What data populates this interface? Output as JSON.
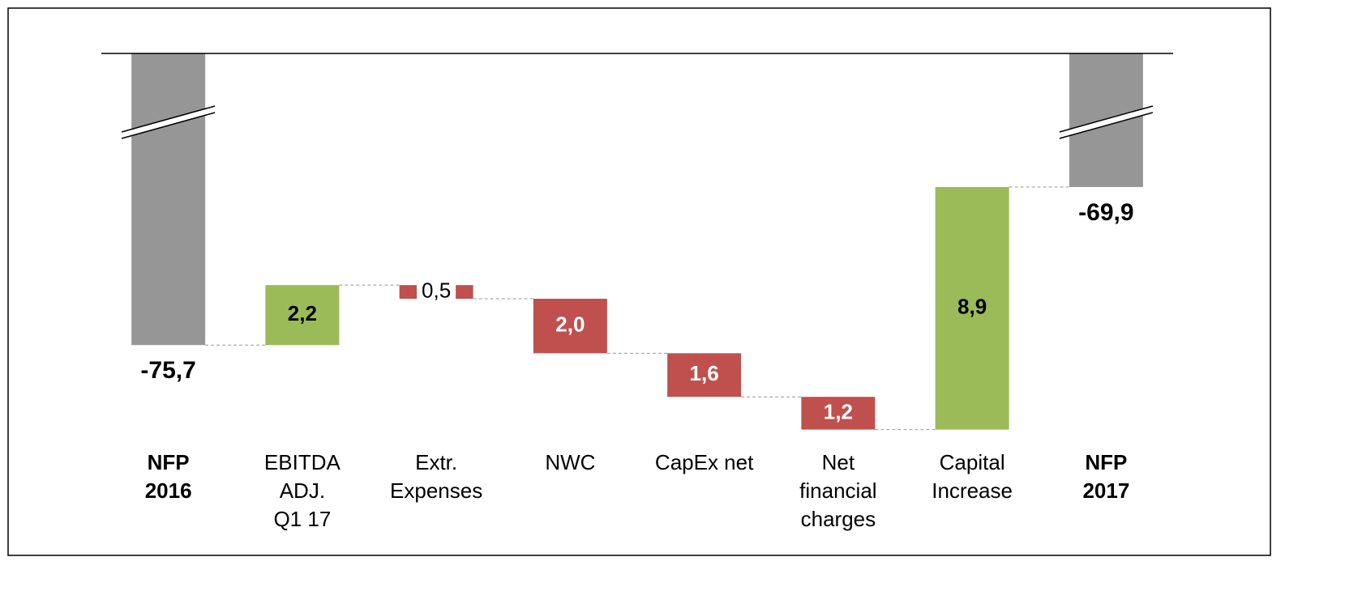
{
  "chart_data": {
    "type": "waterfall",
    "categories": [
      [
        "NFP",
        "2016"
      ],
      [
        "EBITDA",
        "ADJ.",
        "Q1 17"
      ],
      [
        "Extr.",
        "Expenses"
      ],
      [
        "NWC"
      ],
      [
        "CapEx net"
      ],
      [
        "Net",
        "financial",
        "charges"
      ],
      [
        "Capital",
        "Increase"
      ],
      [
        "NFP",
        "2017"
      ]
    ],
    "measures": [
      "total",
      "relative",
      "relative",
      "relative",
      "relative",
      "relative",
      "relative",
      "total"
    ],
    "values": [
      -75.7,
      2.2,
      -0.5,
      -2.0,
      -1.6,
      -1.2,
      8.9,
      -69.9
    ],
    "value_labels": [
      "-75,7",
      "2,2",
      "0,5",
      "2,0",
      "1,6",
      "1,2",
      "8,9",
      "-69,9"
    ],
    "colors": {
      "total": "#969696",
      "increase": "#9bbb59",
      "decrease": "#c0504d"
    },
    "ylim": [
      -80,
      -65
    ]
  }
}
